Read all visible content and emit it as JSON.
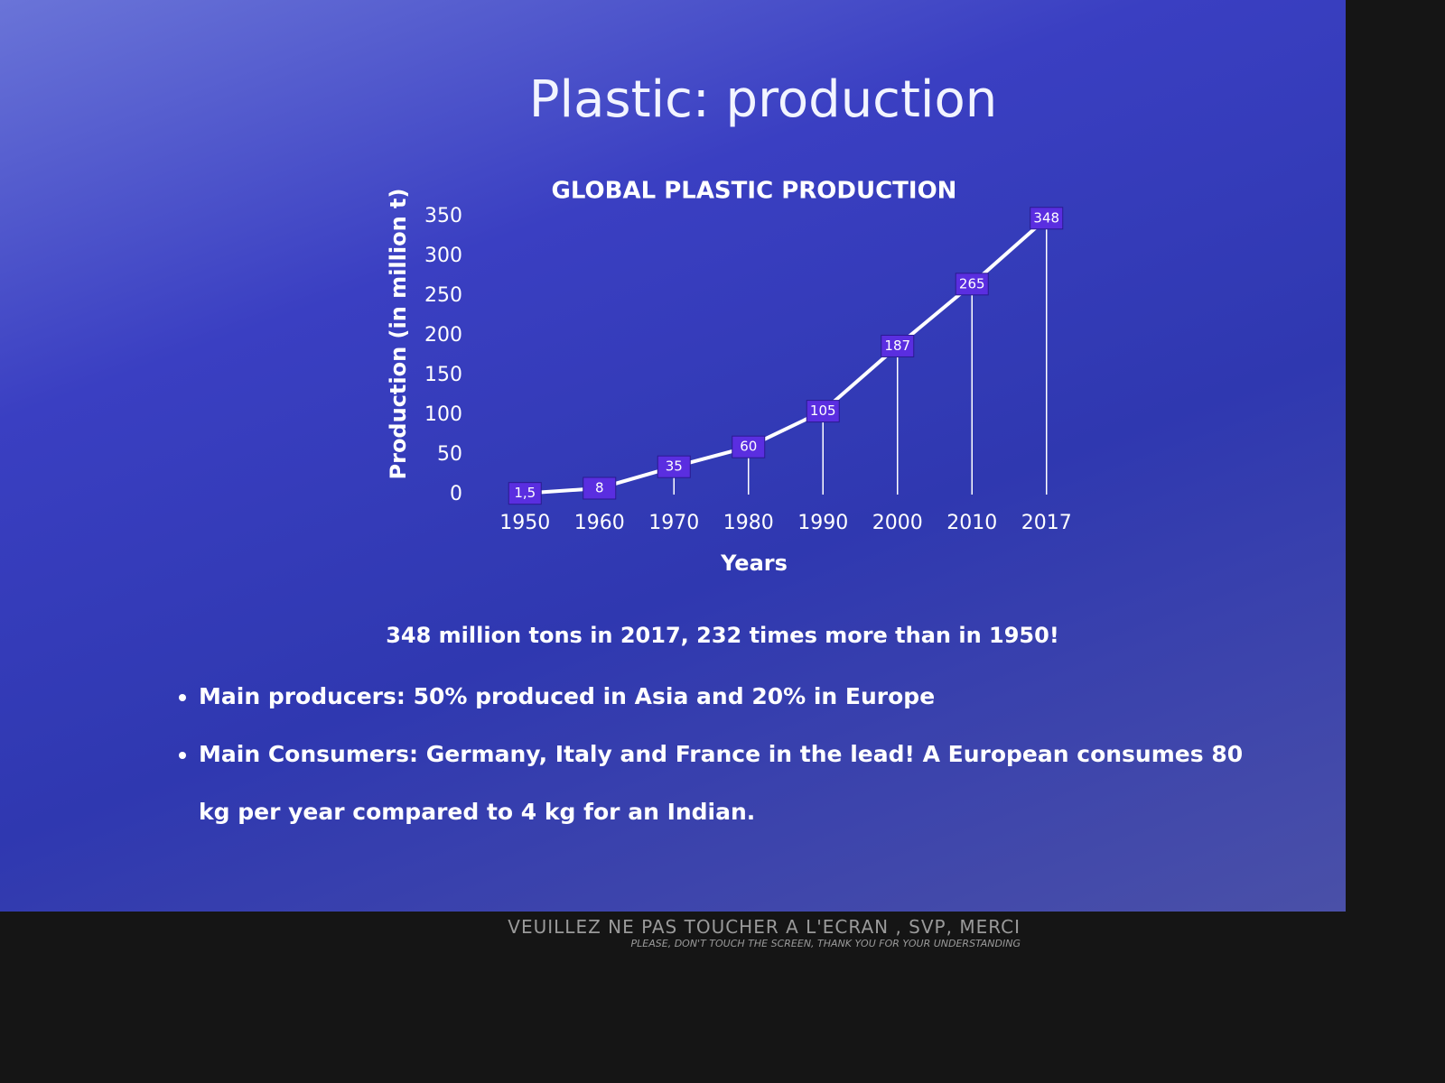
{
  "chart_data": {
    "type": "line",
    "title": "GLOBAL PLASTIC PRODUCTION",
    "xlabel": "Years",
    "ylabel": "Production (in million t)",
    "categories": [
      "1950",
      "1960",
      "1970",
      "1980",
      "1990",
      "2000",
      "2010",
      "2017"
    ],
    "values": [
      1.5,
      8,
      35,
      60,
      105,
      187,
      265,
      348
    ],
    "value_labels": [
      "1,5",
      "8",
      "35",
      "60",
      "105",
      "187",
      "265",
      "348"
    ],
    "color": "#ffffff",
    "label_color": "#5a2ee0",
    "ylim": [
      0,
      350
    ],
    "yticks": [
      0,
      50,
      100,
      150,
      200,
      250,
      300,
      350
    ],
    "grid": false
  },
  "slide": {
    "title": "Plastic: production",
    "caption": "348 million tons in 2017, 232 times more than in 1950!",
    "bullets": [
      "Main producers: 50% produced in Asia and 20% in Europe",
      "Main Consumers:  Germany, Italy and France in the lead! A European consumes 80 kg per year compared to 4 kg for an Indian."
    ]
  },
  "bezel": {
    "notice": "VEUILLEZ NE PAS TOUCHER A L'ECRAN , SVP, MERCI",
    "notice_en": "PLEASE, DON'T TOUCH THE SCREEN, THANK YOU FOR YOUR UNDERSTANDING"
  }
}
